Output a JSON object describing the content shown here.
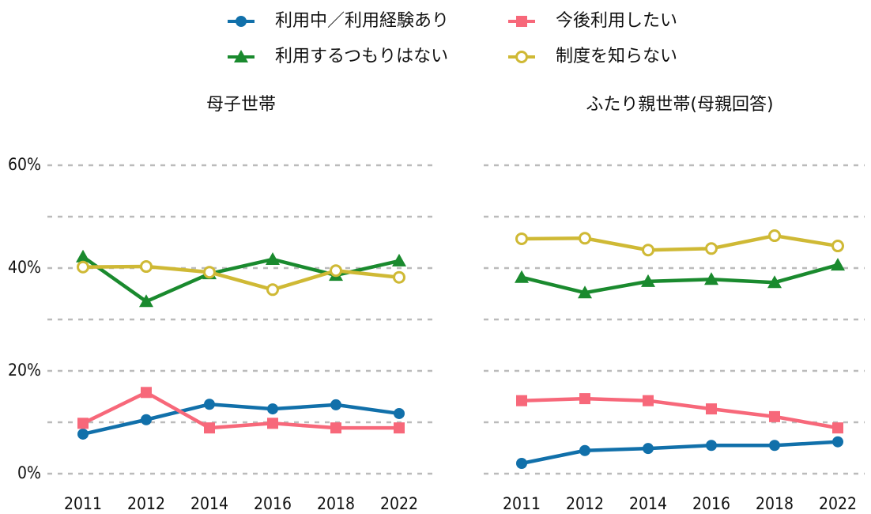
{
  "chart_data": {
    "type": "line",
    "categories": [
      "2011",
      "2012",
      "2014",
      "2016",
      "2018",
      "2022"
    ],
    "ylim": [
      -2,
      62
    ],
    "yticks": [
      {
        "value": 0,
        "label": "0%"
      },
      {
        "value": 20,
        "label": "20%"
      },
      {
        "value": 40,
        "label": "40%"
      },
      {
        "value": 60,
        "label": "60%"
      }
    ],
    "minor_yticks": [
      10,
      30,
      50
    ],
    "grid": true,
    "legend": "top",
    "series": [
      {
        "name": "利用中／利用経験あり",
        "color": "#1170aa",
        "marker": "circle"
      },
      {
        "name": "今後利用したい",
        "color": "#f7687a",
        "marker": "square"
      },
      {
        "name": "利用するつもりはない",
        "color": "#1a8a2e",
        "marker": "triangle"
      },
      {
        "name": "制度を知らない",
        "color": "#cfb935",
        "marker": "open-circle"
      }
    ],
    "panels": [
      {
        "title": "母子世帯",
        "values": [
          [
            7.7,
            10.5,
            13.5,
            12.6,
            13.4,
            11.7
          ],
          [
            9.8,
            15.8,
            8.9,
            9.8,
            8.9,
            8.9
          ],
          [
            42.2,
            33.5,
            38.9,
            41.7,
            38.6,
            41.4
          ],
          [
            40.2,
            40.3,
            39.2,
            35.8,
            39.5,
            38.2
          ]
        ]
      },
      {
        "title": "ふたり親世帯(母親回答)",
        "values": [
          [
            2.0,
            4.5,
            4.9,
            5.5,
            5.5,
            6.2
          ],
          [
            14.2,
            14.6,
            14.2,
            12.6,
            11.1,
            8.9
          ],
          [
            38.2,
            35.2,
            37.4,
            37.8,
            37.2,
            40.6
          ],
          [
            45.7,
            45.8,
            43.5,
            43.8,
            46.3,
            44.3
          ]
        ]
      }
    ]
  }
}
